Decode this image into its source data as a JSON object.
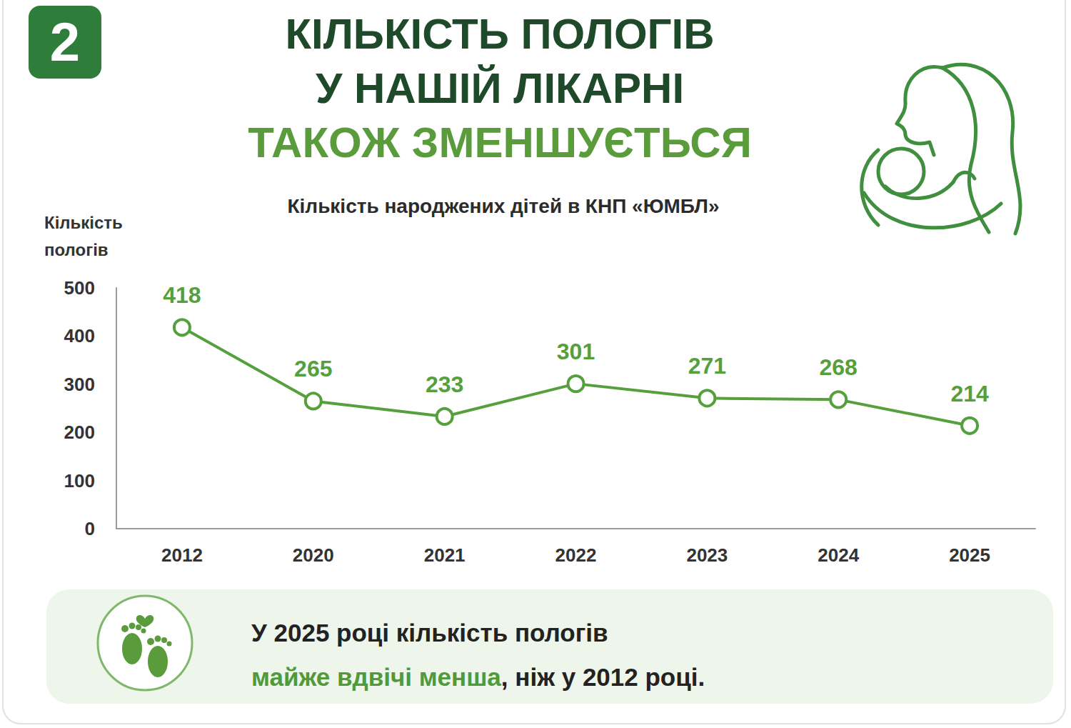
{
  "header": {
    "badge": "2",
    "headline": [
      "КІЛЬКІСТЬ ПОЛОГІВ",
      "У НАШІЙ ЛІКАРНІ"
    ],
    "headline_highlight": "ТАКОЖ ЗМЕНШУЄТЬСЯ"
  },
  "chart_data": {
    "type": "line",
    "title": "Кількість народжених дітей в КНП «ЮМБЛ»",
    "ylabel": "Кількість пологів",
    "categories": [
      "2012",
      "2020",
      "2021",
      "2022",
      "2023",
      "2024",
      "2025"
    ],
    "values": [
      418,
      265,
      233,
      301,
      271,
      268,
      214
    ],
    "color": "#55a03c",
    "marker": "circle",
    "data_labels": true,
    "ylim": [
      0,
      500
    ],
    "yticks": [
      0,
      100,
      200,
      300,
      400,
      500
    ],
    "grid": false
  },
  "note": {
    "text": "У 2025 році кількість пологів",
    "highlight": "майже вдвічі менша",
    "rest": ", ніж у 2012 році."
  }
}
